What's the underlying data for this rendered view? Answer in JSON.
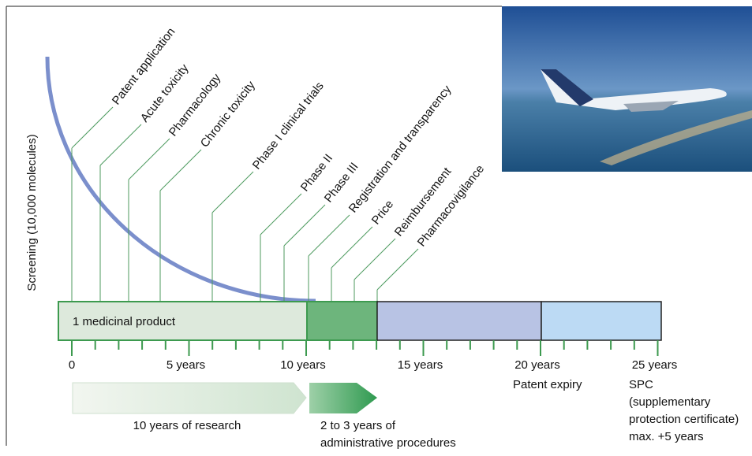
{
  "axis_title": "Screening (10,000 molecules)",
  "milestones": [
    "Patent application",
    "Acute toxicity",
    "Pharmacology",
    "Chronic toxicity",
    "Phase I clinical trials",
    "Phase II",
    "Phase III",
    "Registration and transparency",
    "Price",
    "Reimbursement",
    "Pharmacovigilance"
  ],
  "bar_label": "1 medicinal product",
  "timeline_labels": [
    "0",
    "5 years",
    "10 years",
    "15 years",
    "20 years",
    "25 years"
  ],
  "patent_expiry": "Patent expiry",
  "spc": [
    "SPC",
    "(supplementary",
    "protection certificate)",
    "max.  +5 years"
  ],
  "phases": {
    "research": "10 years of research",
    "admin": [
      "2 to 3 years of",
      "administrative procedures"
    ]
  }
}
